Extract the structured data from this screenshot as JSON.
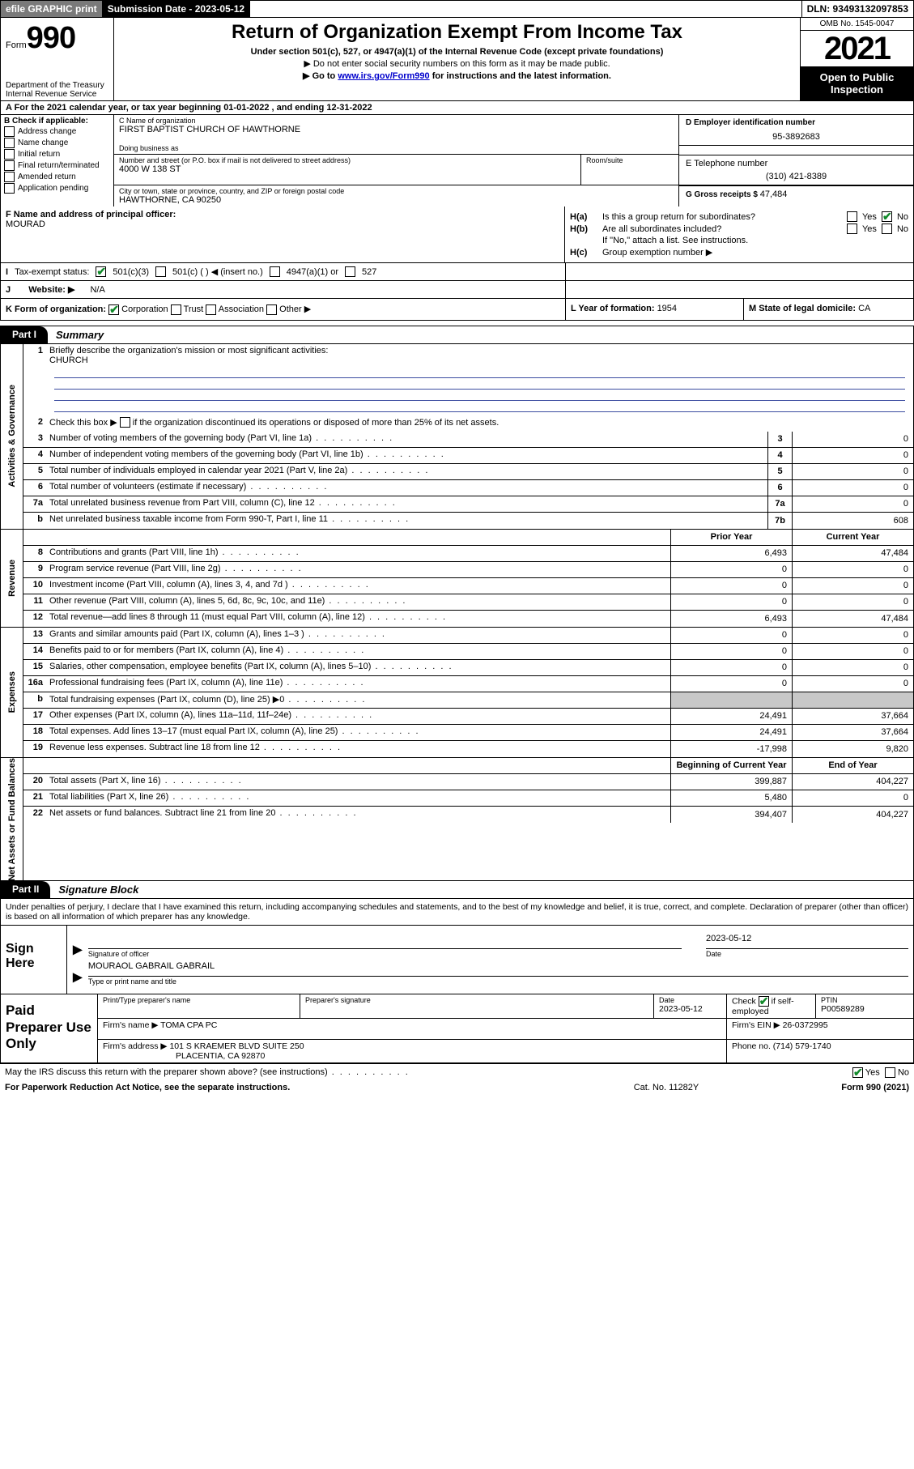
{
  "topbar": {
    "efile": "efile GRAPHIC print",
    "submission_label": "Submission Date - 2023-05-12",
    "dln": "DLN: 93493132097853"
  },
  "header": {
    "form_prefix": "Form",
    "form_number": "990",
    "dept": "Department of the Treasury",
    "irs": "Internal Revenue Service",
    "title": "Return of Organization Exempt From Income Tax",
    "sub1": "Under section 501(c), 527, or 4947(a)(1) of the Internal Revenue Code (except private foundations)",
    "sub2": "▶ Do not enter social security numbers on this form as it may be made public.",
    "sub3_pre": "▶ Go to ",
    "sub3_link": "www.irs.gov/Form990",
    "sub3_post": " for instructions and the latest information.",
    "omb": "OMB No. 1545-0047",
    "year": "2021",
    "open_public": "Open to Public Inspection"
  },
  "row_a": "A For the 2021 calendar year, or tax year beginning 01-01-2022   , and ending 12-31-2022",
  "col_b": {
    "hdr": "B Check if applicable:",
    "items": [
      "Address change",
      "Name change",
      "Initial return",
      "Final return/terminated",
      "Amended return",
      "Application pending"
    ]
  },
  "col_c": {
    "name_lbl": "C Name of organization",
    "name": "FIRST BAPTIST CHURCH OF HAWTHORNE",
    "dba_lbl": "Doing business as",
    "dba": "",
    "street_lbl": "Number and street (or P.O. box if mail is not delivered to street address)",
    "street": "4000 W 138 ST",
    "room_lbl": "Room/suite",
    "city_lbl": "City or town, state or province, country, and ZIP or foreign postal code",
    "city": "HAWTHORNE, CA  90250"
  },
  "col_d": {
    "ein_lbl": "D Employer identification number",
    "ein": "95-3892683",
    "tel_lbl": "E Telephone number",
    "tel": "(310) 421-8389",
    "gross_lbl": "G Gross receipts $ ",
    "gross": "47,484"
  },
  "row_f": {
    "lbl": "F Name and address of principal officer:",
    "val": "MOURAD"
  },
  "row_h": {
    "ha": "H(a)  Is this a group return for subordinates?",
    "hb": "H(b)  Are all subordinates included?",
    "hb_note": "If \"No,\" attach a list. See instructions.",
    "hc": "H(c)  Group exemption number ▶",
    "yes": "Yes",
    "no": "No"
  },
  "row_i": {
    "lbl": "Tax-exempt status:",
    "o1": "501(c)(3)",
    "o2": "501(c) (  ) ◀ (insert no.)",
    "o3": "4947(a)(1) or",
    "o4": "527"
  },
  "row_j": {
    "lbl": "Website: ▶",
    "val": "N/A"
  },
  "row_k": {
    "lbl": "K Form of organization:",
    "o1": "Corporation",
    "o2": "Trust",
    "o3": "Association",
    "o4": "Other ▶",
    "l_lbl": "L Year of formation: ",
    "l_val": "1954",
    "m_lbl": "M State of legal domicile: ",
    "m_val": "CA"
  },
  "part1": {
    "tab": "Part I",
    "title": "Summary"
  },
  "vtabs": {
    "gov": "Activities & Governance",
    "rev": "Revenue",
    "exp": "Expenses",
    "net": "Net Assets or Fund Balances"
  },
  "summary": {
    "q1_lbl": "Briefly describe the organization's mission or most significant activities:",
    "q1_val": "CHURCH",
    "q2": "Check this box ▶      if the organization discontinued its operations or disposed of more than 25% of its net assets.",
    "rows_gov": [
      {
        "n": "3",
        "d": "Number of voting members of the governing body (Part VI, line 1a)",
        "box": "3",
        "v": "0"
      },
      {
        "n": "4",
        "d": "Number of independent voting members of the governing body (Part VI, line 1b)",
        "box": "4",
        "v": "0"
      },
      {
        "n": "5",
        "d": "Total number of individuals employed in calendar year 2021 (Part V, line 2a)",
        "box": "5",
        "v": "0"
      },
      {
        "n": "6",
        "d": "Total number of volunteers (estimate if necessary)",
        "box": "6",
        "v": "0"
      },
      {
        "n": "7a",
        "d": "Total unrelated business revenue from Part VIII, column (C), line 12",
        "box": "7a",
        "v": "0"
      },
      {
        "n": "b",
        "d": "Net unrelated business taxable income from Form 990-T, Part I, line 11",
        "box": "7b",
        "v": "608"
      }
    ],
    "col_hdr_prior": "Prior Year",
    "col_hdr_curr": "Current Year",
    "rows_rev": [
      {
        "n": "8",
        "d": "Contributions and grants (Part VIII, line 1h)",
        "p": "6,493",
        "c": "47,484"
      },
      {
        "n": "9",
        "d": "Program service revenue (Part VIII, line 2g)",
        "p": "0",
        "c": "0"
      },
      {
        "n": "10",
        "d": "Investment income (Part VIII, column (A), lines 3, 4, and 7d )",
        "p": "0",
        "c": "0"
      },
      {
        "n": "11",
        "d": "Other revenue (Part VIII, column (A), lines 5, 6d, 8c, 9c, 10c, and 11e)",
        "p": "0",
        "c": "0"
      },
      {
        "n": "12",
        "d": "Total revenue—add lines 8 through 11 (must equal Part VIII, column (A), line 12)",
        "p": "6,493",
        "c": "47,484"
      }
    ],
    "rows_exp": [
      {
        "n": "13",
        "d": "Grants and similar amounts paid (Part IX, column (A), lines 1–3 )",
        "p": "0",
        "c": "0"
      },
      {
        "n": "14",
        "d": "Benefits paid to or for members (Part IX, column (A), line 4)",
        "p": "0",
        "c": "0"
      },
      {
        "n": "15",
        "d": "Salaries, other compensation, employee benefits (Part IX, column (A), lines 5–10)",
        "p": "0",
        "c": "0"
      },
      {
        "n": "16a",
        "d": "Professional fundraising fees (Part IX, column (A), line 11e)",
        "p": "0",
        "c": "0"
      },
      {
        "n": "b",
        "d": "Total fundraising expenses (Part IX, column (D), line 25) ▶0",
        "p": "",
        "c": "",
        "grey": true
      },
      {
        "n": "17",
        "d": "Other expenses (Part IX, column (A), lines 11a–11d, 11f–24e)",
        "p": "24,491",
        "c": "37,664"
      },
      {
        "n": "18",
        "d": "Total expenses. Add lines 13–17 (must equal Part IX, column (A), line 25)",
        "p": "24,491",
        "c": "37,664"
      },
      {
        "n": "19",
        "d": "Revenue less expenses. Subtract line 18 from line 12",
        "p": "-17,998",
        "c": "9,820"
      }
    ],
    "col_hdr_beg": "Beginning of Current Year",
    "col_hdr_end": "End of Year",
    "rows_net": [
      {
        "n": "20",
        "d": "Total assets (Part X, line 16)",
        "p": "399,887",
        "c": "404,227"
      },
      {
        "n": "21",
        "d": "Total liabilities (Part X, line 26)",
        "p": "5,480",
        "c": "0"
      },
      {
        "n": "22",
        "d": "Net assets or fund balances. Subtract line 21 from line 20",
        "p": "394,407",
        "c": "404,227"
      }
    ]
  },
  "part2": {
    "tab": "Part II",
    "title": "Signature Block"
  },
  "sig_intro": "Under penalties of perjury, I declare that I have examined this return, including accompanying schedules and statements, and to the best of my knowledge and belief, it is true, correct, and complete. Declaration of preparer (other than officer) is based on all information of which preparer has any knowledge.",
  "sign": {
    "here": "Sign Here",
    "sig_lbl": "Signature of officer",
    "date_lbl": "Date",
    "date_val": "2023-05-12",
    "name_val": "MOURAOL GABRAIL  GABRAIL",
    "name_lbl": "Type or print name and title"
  },
  "prep": {
    "title": "Paid Preparer Use Only",
    "r1": {
      "c1_lbl": "Print/Type preparer's name",
      "c1": "",
      "c2_lbl": "Preparer's signature",
      "c2": "",
      "c3_lbl": "Date",
      "c3": "2023-05-12",
      "c4_pre": "Check",
      "c4_post": "if self-employed",
      "c5_lbl": "PTIN",
      "c5": "P00589289"
    },
    "r2": {
      "c1_lbl": "Firm's name    ▶ ",
      "c1": "TOMA CPA PC",
      "c2_lbl": "Firm's EIN ▶ ",
      "c2": "26-0372995"
    },
    "r3": {
      "c1_lbl": "Firm's address ▶ ",
      "c1": "101 S KRAEMER BLVD SUITE 250",
      "c1b": "PLACENTIA, CA  92870",
      "c2_lbl": "Phone no. ",
      "c2": "(714) 579-1740"
    }
  },
  "footer": {
    "discuss": "May the IRS discuss this return with the preparer shown above? (see instructions)",
    "yes": "Yes",
    "no": "No",
    "pra": "For Paperwork Reduction Act Notice, see the separate instructions.",
    "cat": "Cat. No. 11282Y",
    "form": "Form 990 (2021)"
  }
}
